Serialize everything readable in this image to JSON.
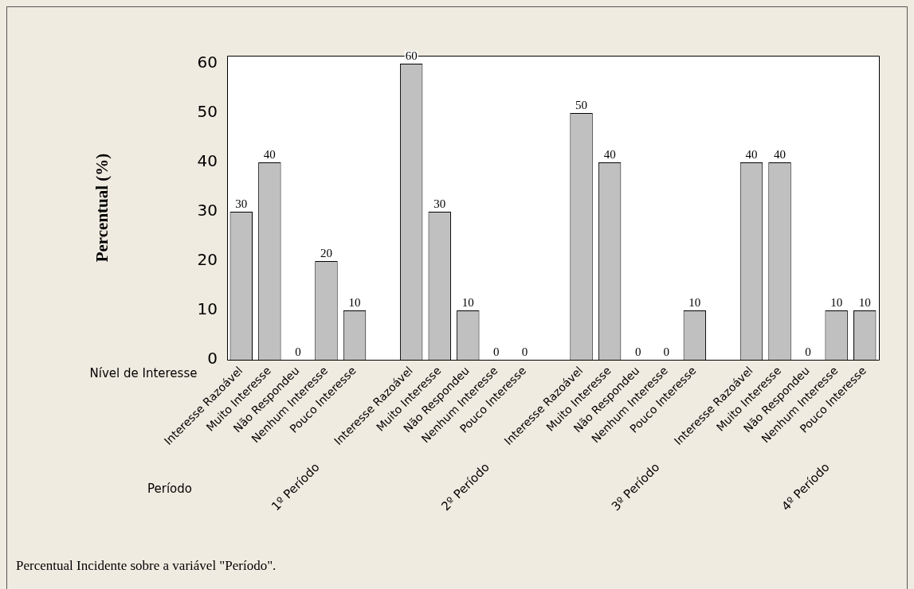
{
  "chart_data": {
    "type": "bar",
    "ylabel": "Percentual (%)",
    "categories": [
      "Interesse Razoável",
      "Muito Interesse",
      "Não Respondeu",
      "Nenhum Interesse",
      "Pouco Interesse",
      null,
      "Interesse Razoável",
      "Muito Interesse",
      "Não Respondeu",
      "Nenhum Interesse",
      "Pouco Interesse",
      null,
      "Interesse Razoável",
      "Muito Interesse",
      "Não Respondeu",
      "Nenhum Interesse",
      "Pouco Interesse",
      null,
      "Interesse Razoável",
      "Muito Interesse",
      "Não Respondeu",
      "Nenhum Interesse",
      "Pouco Interesse"
    ],
    "values": [
      30,
      40,
      0,
      20,
      10,
      null,
      60,
      30,
      10,
      0,
      0,
      null,
      50,
      40,
      0,
      0,
      10,
      null,
      40,
      40,
      0,
      10,
      10
    ],
    "color": "#c0c0c0",
    "ylim": [
      0,
      61.6
    ],
    "yticks": [
      0,
      10,
      20,
      30,
      40,
      50,
      60
    ],
    "data_labels": true,
    "annotations": [
      "Nível de Interesse",
      "Período",
      "1º Período",
      "2º Período",
      "3º Período",
      "4º Período",
      "Percentual Incidente sobre a variável \"Período\"."
    ]
  }
}
